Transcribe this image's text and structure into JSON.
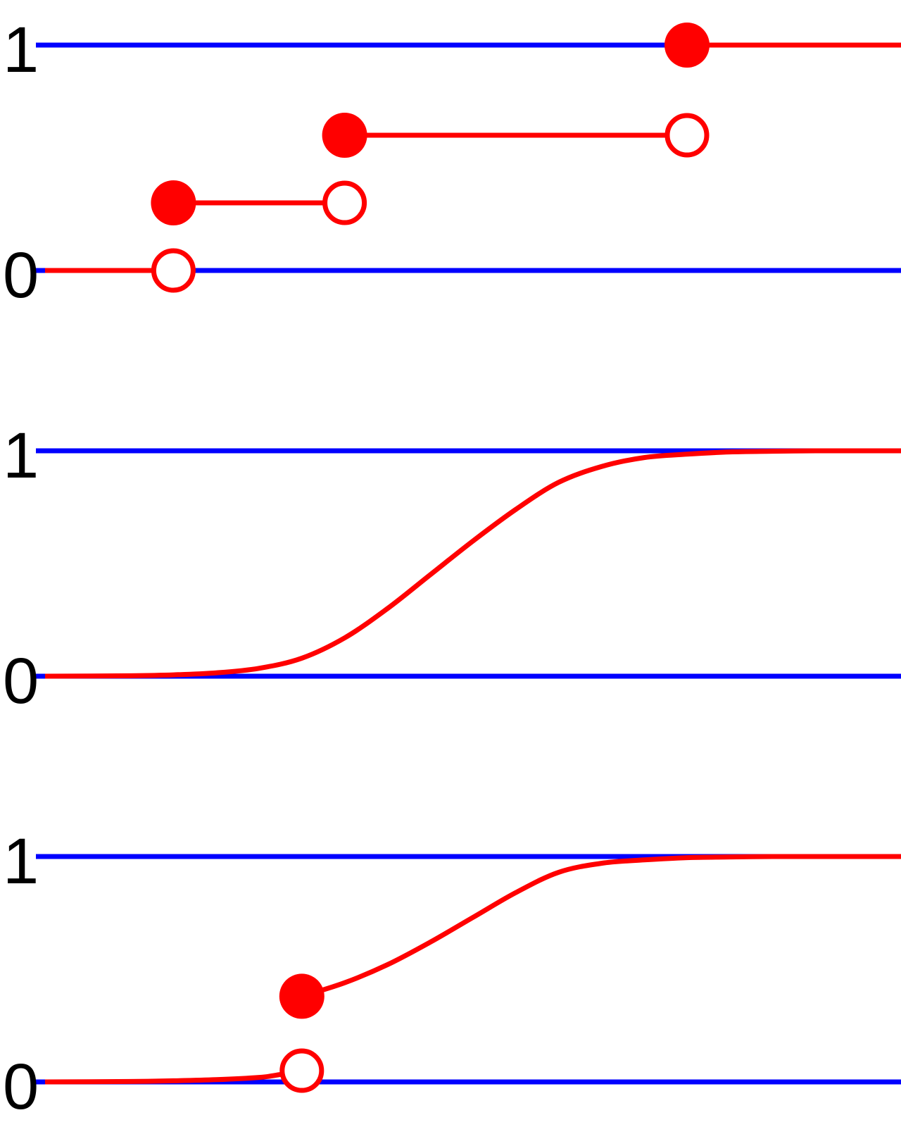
{
  "colors": {
    "reference_line": "#0000ff",
    "function": "#ff0000",
    "background": "#ffffff",
    "text": "#000000"
  },
  "chart_data": [
    {
      "type": "line",
      "title": "",
      "xlabel": "",
      "ylabel": "",
      "ylim": [
        0,
        1
      ],
      "yticks": [
        {
          "value": 0,
          "label": "0"
        },
        {
          "value": 1,
          "label": "1"
        }
      ],
      "reference_lines": [
        0,
        1
      ],
      "series": [
        {
          "style": "step",
          "segments": [
            {
              "from": 0.0,
              "to": 0.15,
              "y": 0,
              "start_open": false,
              "end_open": true
            },
            {
              "from": 0.15,
              "to": 0.35,
              "y": 0.3,
              "start_open": false,
              "end_open": true
            },
            {
              "from": 0.35,
              "to": 0.75,
              "y": 0.6,
              "start_open": false,
              "end_open": true
            },
            {
              "from": 0.75,
              "to": 1.0,
              "y": 1,
              "start_open": false,
              "end_open": false
            }
          ]
        }
      ]
    },
    {
      "type": "line",
      "title": "",
      "xlabel": "",
      "ylabel": "",
      "ylim": [
        0,
        1
      ],
      "yticks": [
        {
          "value": 0,
          "label": "0"
        },
        {
          "value": 1,
          "label": "1"
        }
      ],
      "reference_lines": [
        0,
        1
      ],
      "series": [
        {
          "style": "smooth",
          "x": [
            0.0,
            0.1,
            0.15,
            0.2,
            0.25,
            0.3,
            0.35,
            0.4,
            0.45,
            0.5,
            0.55,
            0.6,
            0.65,
            0.7,
            0.75,
            0.8,
            0.85,
            0.9,
            0.95,
            1.0
          ],
          "y": [
            0.0,
            0.002,
            0.006,
            0.015,
            0.035,
            0.08,
            0.17,
            0.3,
            0.45,
            0.6,
            0.74,
            0.86,
            0.93,
            0.97,
            0.985,
            0.995,
            0.998,
            1.0,
            1.0,
            1.0
          ]
        }
      ]
    },
    {
      "type": "line",
      "title": "",
      "xlabel": "",
      "ylabel": "",
      "ylim": [
        0,
        1
      ],
      "yticks": [
        {
          "value": 0,
          "label": "0"
        },
        {
          "value": 1,
          "label": "1"
        }
      ],
      "reference_lines": [
        0,
        1
      ],
      "series": [
        {
          "style": "smooth",
          "x": [
            0.0,
            0.1,
            0.15,
            0.2,
            0.25,
            0.27,
            0.3
          ],
          "y": [
            0.0,
            0.002,
            0.005,
            0.01,
            0.02,
            0.03,
            0.05
          ],
          "end_open": true
        },
        {
          "style": "smooth",
          "x": [
            0.3,
            0.35,
            0.4,
            0.45,
            0.5,
            0.55,
            0.6,
            0.65,
            0.7,
            0.75,
            0.8,
            0.85,
            0.9,
            1.0
          ],
          "y": [
            0.38,
            0.44,
            0.52,
            0.62,
            0.73,
            0.84,
            0.93,
            0.97,
            0.985,
            0.995,
            0.998,
            1.0,
            1.0,
            1.0
          ],
          "start_open": false
        }
      ]
    }
  ]
}
